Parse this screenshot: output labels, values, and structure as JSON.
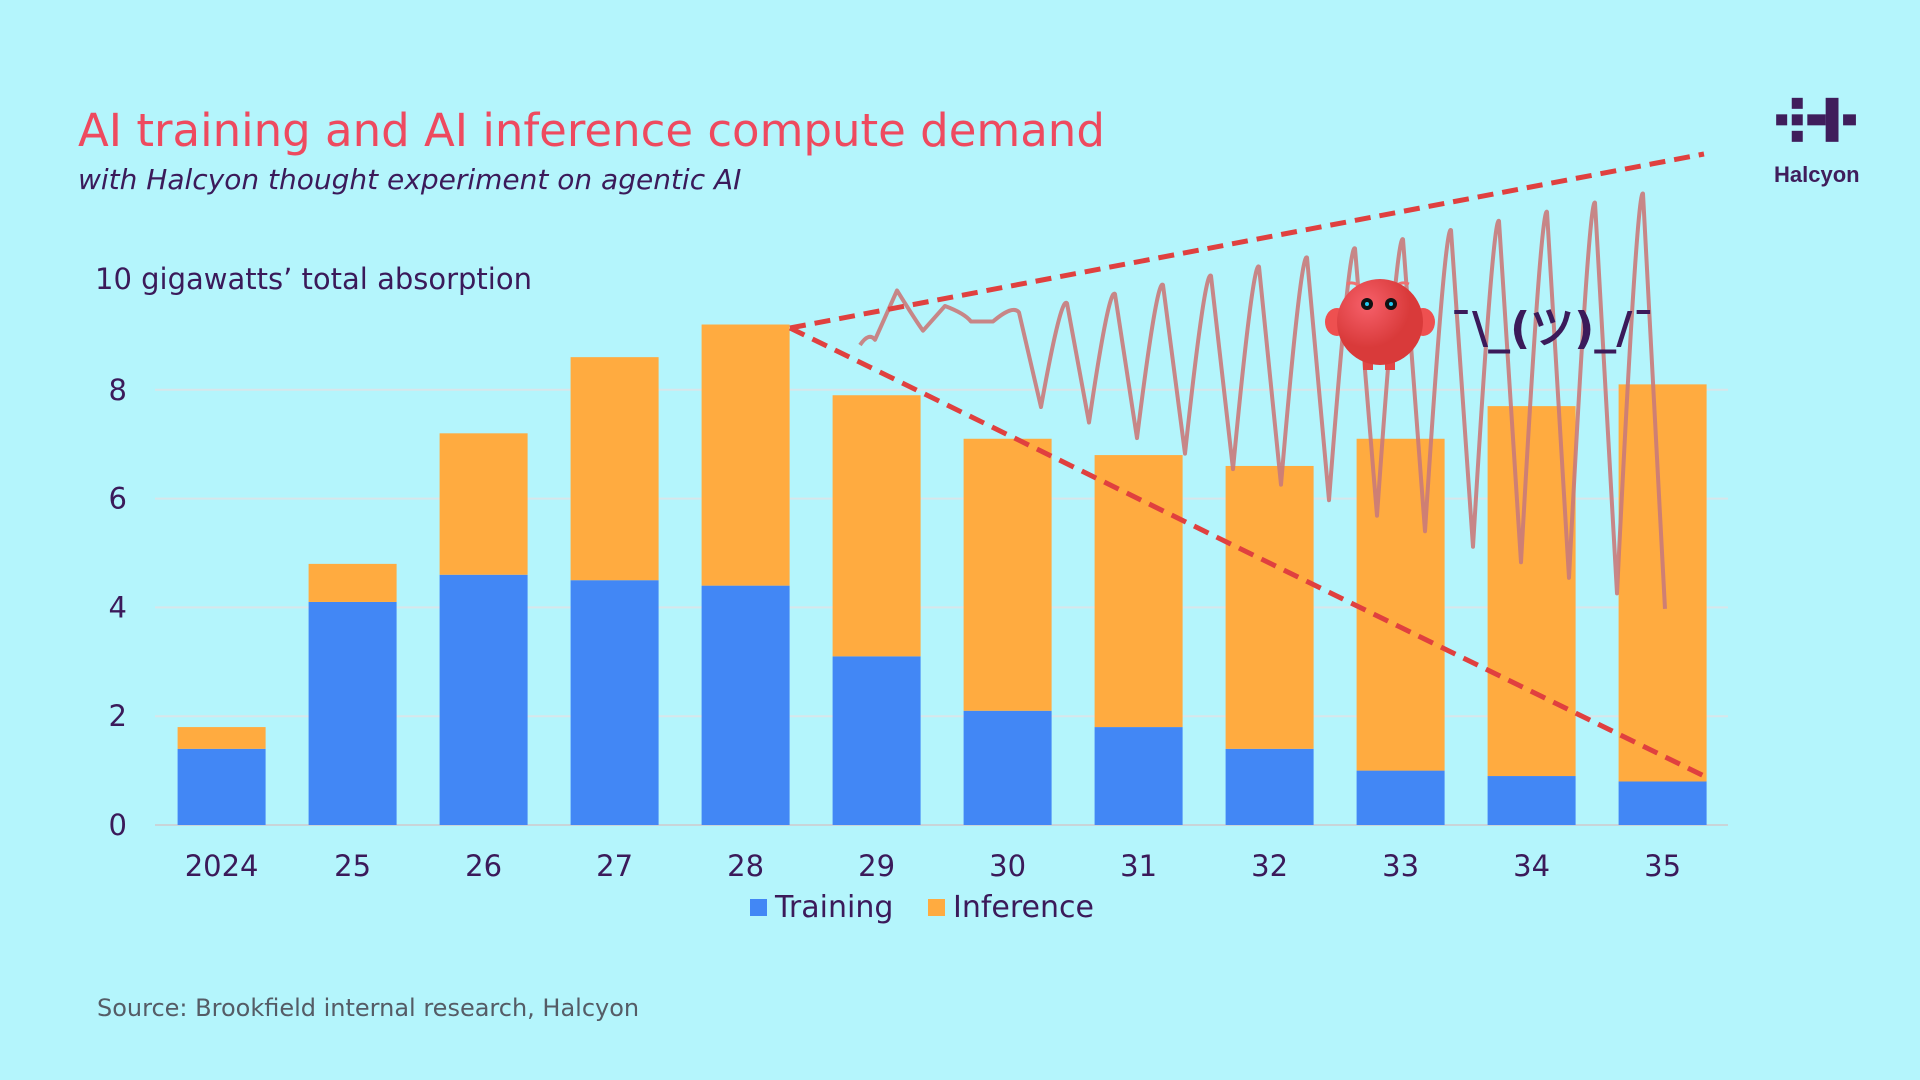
{
  "header": {
    "title": "AI training and AI inference compute demand",
    "subtitle": "with Halcyon thought experiment on agentic AI"
  },
  "logo": {
    "text": "Halcyon"
  },
  "annotation": {
    "shrug": "¯\\_(ツ)_/¯",
    "mascot_icon": "red-blob-mascot"
  },
  "source": "Source: Brookfield internal research, Halcyon",
  "colors": {
    "training": "#4287f5",
    "inference": "#ffab40",
    "title": "#ee4a5f",
    "dashed": "#e0403f",
    "squiggle": "#c97a7a",
    "background": "#b4f5fc"
  },
  "chart_data": {
    "type": "bar",
    "stacked": true,
    "ylabel": "10 gigawatts’ total absorption",
    "categories": [
      "2024",
      "25",
      "26",
      "27",
      "28",
      "29",
      "30",
      "31",
      "32",
      "33",
      "34",
      "35"
    ],
    "series": [
      {
        "name": "Training",
        "values": [
          1.4,
          4.1,
          4.6,
          4.5,
          4.4,
          3.1,
          2.1,
          1.8,
          1.4,
          1.0,
          0.9,
          0.8
        ]
      },
      {
        "name": "Inference",
        "values": [
          0.4,
          0.7,
          2.6,
          4.1,
          4.8,
          4.8,
          5.0,
          5.0,
          5.2,
          6.1,
          6.8,
          7.3
        ]
      }
    ],
    "yticks": [
      0,
      2,
      4,
      6,
      8
    ],
    "ylim": [
      0,
      10
    ],
    "grid": true,
    "legend": "bottom-center",
    "annotations": [
      "dashed upper trend line rising from 28 to beyond 35",
      "dashed lower trend line falling from 28 to 35",
      "scribbled zigzag between trend lines"
    ]
  }
}
